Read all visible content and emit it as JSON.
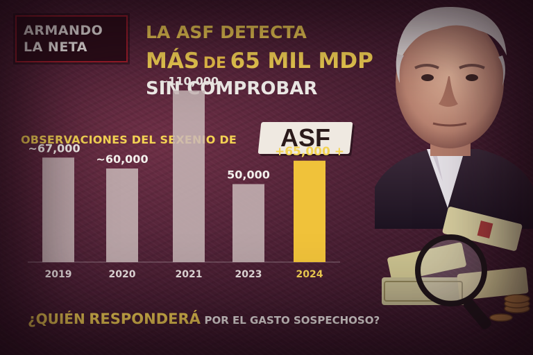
{
  "brand": {
    "line1": "ARMANDO",
    "line2": "LA NETA"
  },
  "headline": {
    "line1": "LA ASF DETECTA",
    "line2_a": "MÁS",
    "line2_b": "DE",
    "line2_c": "65 MIL MDP",
    "line3": "SIN COMPROBAR"
  },
  "section": {
    "label": "OBSERVACIONES DEL SEXENIO DE",
    "badge": "ASF"
  },
  "question": {
    "part1": "¿QUIÉN",
    "part2": "RESPONDERÁ",
    "part3": "POR EL GASTO SOSPECHOSO?"
  },
  "colors": {
    "accent_yellow": "#f3d253",
    "bar_gray": "#c9b8b8",
    "bar_highlight": "#f0c23a",
    "brand_border": "#a01d2a"
  },
  "chart_data": {
    "type": "bar",
    "categories": [
      "2019",
      "2020",
      "2021",
      "2023",
      "2024"
    ],
    "values": [
      67000,
      60000,
      110000,
      50000,
      65000
    ],
    "data_labels": [
      "~67,000",
      "~60,000",
      "~110,000",
      "50,000",
      "+65,000 +"
    ],
    "highlight_index": 4,
    "title": "OBSERVACIONES DEL SEXENIO DE ASF",
    "xlabel": "",
    "ylabel": "",
    "ylim": [
      0,
      120000
    ],
    "grid": false
  }
}
